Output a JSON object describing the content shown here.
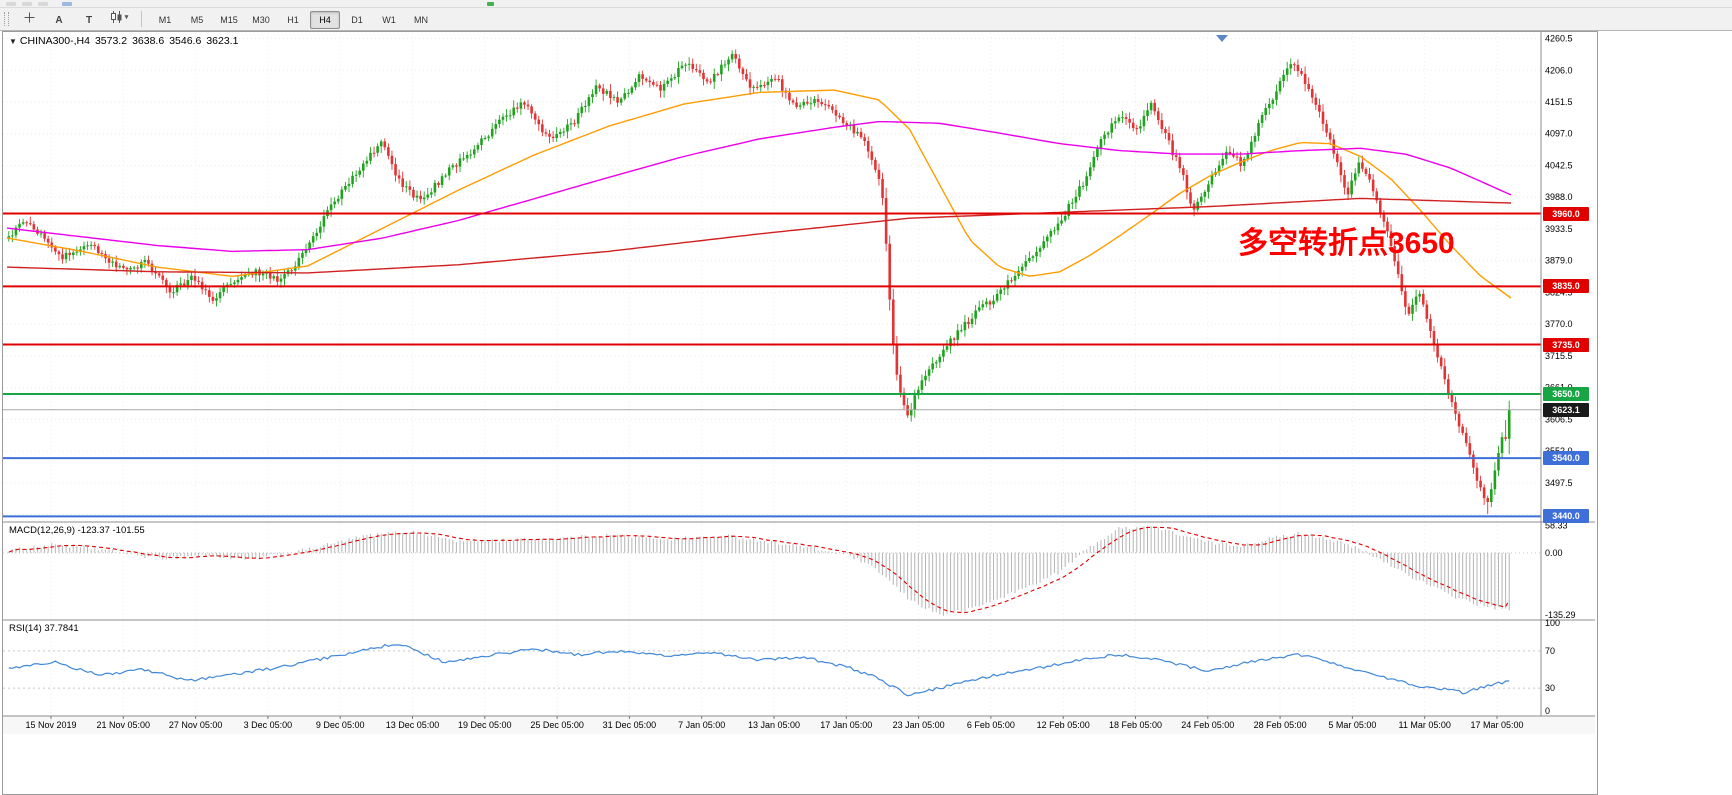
{
  "toolbar": {
    "tools": [
      {
        "name": "crosshair-tool",
        "icon": "crosshair",
        "label": ""
      },
      {
        "name": "text-label-tool",
        "icon": "",
        "label": "A"
      },
      {
        "name": "text-tool",
        "icon": "",
        "label": "T"
      },
      {
        "name": "chart-type-tool",
        "icon": "candles",
        "label": "",
        "dropdown": "▾"
      }
    ],
    "timeframes": [
      "M1",
      "M5",
      "M15",
      "M30",
      "H1",
      "H4",
      "D1",
      "W1",
      "MN"
    ],
    "active_timeframe": "H4"
  },
  "header": {
    "dropdown_icon": "▼",
    "symbol": "CHINA300-,H4",
    "open": "3573.2",
    "high": "3638.6",
    "low": "3546.6",
    "close": "3623.1"
  },
  "annotation": {
    "text": "多空转折点3650",
    "color": "#ff0000"
  },
  "indicators": {
    "macd_label": "MACD(12,26,9) -123.37 -101.55",
    "rsi_label": "RSI(14) 37.7841"
  },
  "colors": {
    "bull": "#1fa31f",
    "bear": "#e23434",
    "grid": "#ececec",
    "macd_hist": "#b4b4b4",
    "macd_signal": "#e00000",
    "rsi_line": "#3f87d8",
    "current_line": "#a8a8a8",
    "badge_current_bg": "#1a1a1a"
  },
  "chart_data": {
    "type": "candlestick",
    "symbol": "CHINA300-",
    "timeframe": "H4",
    "bars": 420,
    "last_candle": {
      "open": 3573.2,
      "high": 3638.6,
      "low": 3546.6,
      "close": 3623.1
    },
    "current_price": {
      "value": 3623.1,
      "label": "3623.1"
    },
    "main": {
      "y_ticks": [
        4260.5,
        4206.0,
        4151.5,
        4097.0,
        4042.5,
        3988.0,
        3933.5,
        3879.0,
        3824.5,
        3770.0,
        3715.5,
        3661.0,
        3606.5,
        3552.0,
        3497.5,
        3443.0
      ],
      "x_labels": [
        "15 Nov 2019",
        "21 Nov 05:00",
        "27 Nov 05:00",
        "3 Dec 05:00",
        "9 Dec 05:00",
        "13 Dec 05:00",
        "19 Dec 05:00",
        "25 Dec 05:00",
        "31 Dec 05:00",
        "7 Jan 05:00",
        "13 Jan 05:00",
        "17 Jan 05:00",
        "23 Jan 05:00",
        "6 Feb 05:00",
        "12 Feb 05:00",
        "18 Feb 05:00",
        "24 Feb 05:00",
        "28 Feb 05:00",
        "5 Mar 05:00",
        "11 Mar 05:00",
        "17 Mar 05:00"
      ],
      "levels": [
        {
          "price": 3960.0,
          "label": "3960.0",
          "color": "#e00000"
        },
        {
          "price": 3835.0,
          "label": "3835.0",
          "color": "#e00000"
        },
        {
          "price": 3735.0,
          "label": "3735.0",
          "color": "#e00000"
        },
        {
          "price": 3650.0,
          "label": "3650.0",
          "color": "#18a645"
        },
        {
          "price": 3540.0,
          "label": "3540.0",
          "color": "#3e6fd8"
        },
        {
          "price": 3440.0,
          "label": "3440.0",
          "color": "#3e6fd8"
        }
      ],
      "price_path": [
        [
          0.0,
          3922
        ],
        [
          0.012,
          3948
        ],
        [
          0.035,
          3885
        ],
        [
          0.055,
          3908
        ],
        [
          0.075,
          3862
        ],
        [
          0.092,
          3876
        ],
        [
          0.108,
          3826
        ],
        [
          0.122,
          3852
        ],
        [
          0.135,
          3812
        ],
        [
          0.15,
          3846
        ],
        [
          0.165,
          3862
        ],
        [
          0.18,
          3842
        ],
        [
          0.195,
          3886
        ],
        [
          0.21,
          3952
        ],
        [
          0.228,
          4020
        ],
        [
          0.248,
          4082
        ],
        [
          0.262,
          4008
        ],
        [
          0.275,
          3978
        ],
        [
          0.292,
          4032
        ],
        [
          0.31,
          4068
        ],
        [
          0.328,
          4122
        ],
        [
          0.345,
          4152
        ],
        [
          0.36,
          4086
        ],
        [
          0.375,
          4112
        ],
        [
          0.392,
          4178
        ],
        [
          0.408,
          4152
        ],
        [
          0.42,
          4196
        ],
        [
          0.435,
          4172
        ],
        [
          0.45,
          4218
        ],
        [
          0.468,
          4188
        ],
        [
          0.482,
          4232
        ],
        [
          0.495,
          4170
        ],
        [
          0.51,
          4196
        ],
        [
          0.525,
          4142
        ],
        [
          0.54,
          4158
        ],
        [
          0.555,
          4120
        ],
        [
          0.57,
          4088
        ],
        [
          0.582,
          4002
        ],
        [
          0.59,
          3712
        ],
        [
          0.598,
          3608
        ],
        [
          0.608,
          3668
        ],
        [
          0.618,
          3705
        ],
        [
          0.63,
          3748
        ],
        [
          0.642,
          3782
        ],
        [
          0.655,
          3812
        ],
        [
          0.668,
          3846
        ],
        [
          0.68,
          3882
        ],
        [
          0.692,
          3920
        ],
        [
          0.705,
          3965
        ],
        [
          0.718,
          4022
        ],
        [
          0.728,
          4085
        ],
        [
          0.74,
          4128
        ],
        [
          0.752,
          4102
        ],
        [
          0.762,
          4148
        ],
        [
          0.772,
          4088
        ],
        [
          0.782,
          4028
        ],
        [
          0.79,
          3962
        ],
        [
          0.8,
          4015
        ],
        [
          0.812,
          4068
        ],
        [
          0.822,
          4042
        ],
        [
          0.832,
          4108
        ],
        [
          0.845,
          4172
        ],
        [
          0.855,
          4225
        ],
        [
          0.865,
          4182
        ],
        [
          0.874,
          4128
        ],
        [
          0.884,
          4062
        ],
        [
          0.892,
          3988
        ],
        [
          0.9,
          4052
        ],
        [
          0.91,
          3996
        ],
        [
          0.922,
          3902
        ],
        [
          0.932,
          3788
        ],
        [
          0.94,
          3822
        ],
        [
          0.948,
          3752
        ],
        [
          0.958,
          3662
        ],
        [
          0.968,
          3588
        ],
        [
          0.978,
          3505
        ],
        [
          0.986,
          3462
        ],
        [
          0.993,
          3552
        ],
        [
          1.0,
          3623.1
        ]
      ],
      "ma_lines": [
        {
          "name": "ma-fast",
          "color": "#ff9d00",
          "path": [
            [
              0.0,
              3918
            ],
            [
              0.05,
              3895
            ],
            [
              0.1,
              3868
            ],
            [
              0.15,
              3852
            ],
            [
              0.2,
              3870
            ],
            [
              0.25,
              3935
            ],
            [
              0.3,
              4000
            ],
            [
              0.35,
              4060
            ],
            [
              0.4,
              4110
            ],
            [
              0.45,
              4148
            ],
            [
              0.5,
              4168
            ],
            [
              0.55,
              4172
            ],
            [
              0.58,
              4155
            ],
            [
              0.6,
              4105
            ],
            [
              0.62,
              4010
            ],
            [
              0.64,
              3915
            ],
            [
              0.66,
              3868
            ],
            [
              0.68,
              3852
            ],
            [
              0.7,
              3860
            ],
            [
              0.72,
              3888
            ],
            [
              0.74,
              3922
            ],
            [
              0.76,
              3958
            ],
            [
              0.78,
              3995
            ],
            [
              0.8,
              4025
            ],
            [
              0.82,
              4048
            ],
            [
              0.84,
              4068
            ],
            [
              0.86,
              4082
            ],
            [
              0.88,
              4080
            ],
            [
              0.9,
              4058
            ],
            [
              0.92,
              4020
            ],
            [
              0.94,
              3965
            ],
            [
              0.96,
              3905
            ],
            [
              0.98,
              3852
            ],
            [
              1.0,
              3815
            ]
          ]
        },
        {
          "name": "ma-mid",
          "color": "#ec00ec",
          "path": [
            [
              0.0,
              3935
            ],
            [
              0.05,
              3920
            ],
            [
              0.1,
              3905
            ],
            [
              0.15,
              3895
            ],
            [
              0.2,
              3898
            ],
            [
              0.25,
              3918
            ],
            [
              0.3,
              3948
            ],
            [
              0.35,
              3985
            ],
            [
              0.4,
              4022
            ],
            [
              0.45,
              4058
            ],
            [
              0.5,
              4088
            ],
            [
              0.55,
              4108
            ],
            [
              0.58,
              4118
            ],
            [
              0.62,
              4115
            ],
            [
              0.66,
              4098
            ],
            [
              0.7,
              4080
            ],
            [
              0.74,
              4068
            ],
            [
              0.78,
              4062
            ],
            [
              0.82,
              4062
            ],
            [
              0.86,
              4068
            ],
            [
              0.9,
              4072
            ],
            [
              0.93,
              4062
            ],
            [
              0.96,
              4038
            ],
            [
              1.0,
              3992
            ]
          ]
        },
        {
          "name": "ma-slow",
          "color": "#d02020",
          "path": [
            [
              0.0,
              3868
            ],
            [
              0.1,
              3860
            ],
            [
              0.2,
              3858
            ],
            [
              0.3,
              3872
            ],
            [
              0.4,
              3895
            ],
            [
              0.5,
              3925
            ],
            [
              0.6,
              3952
            ],
            [
              0.7,
              3962
            ],
            [
              0.8,
              3972
            ],
            [
              0.9,
              3986
            ],
            [
              1.0,
              3978
            ]
          ]
        }
      ]
    },
    "macd": {
      "params": "12,26,9",
      "value": -123.37,
      "signal": -101.55,
      "axis_values": [
        58.33,
        0,
        -135.29
      ],
      "scale_max": 64,
      "scale_min": -142,
      "path": [
        [
          0.0,
          5
        ],
        [
          0.03,
          18
        ],
        [
          0.06,
          8
        ],
        [
          0.1,
          -12
        ],
        [
          0.13,
          -5
        ],
        [
          0.16,
          -15
        ],
        [
          0.2,
          8
        ],
        [
          0.24,
          38
        ],
        [
          0.27,
          45
        ],
        [
          0.3,
          25
        ],
        [
          0.33,
          28
        ],
        [
          0.36,
          30
        ],
        [
          0.4,
          38
        ],
        [
          0.44,
          30
        ],
        [
          0.48,
          36
        ],
        [
          0.52,
          18
        ],
        [
          0.56,
          -5
        ],
        [
          0.58,
          -40
        ],
        [
          0.6,
          -100
        ],
        [
          0.62,
          -132
        ],
        [
          0.64,
          -122
        ],
        [
          0.66,
          -98
        ],
        [
          0.68,
          -72
        ],
        [
          0.7,
          -42
        ],
        [
          0.72,
          12
        ],
        [
          0.74,
          52
        ],
        [
          0.76,
          58
        ],
        [
          0.78,
          40
        ],
        [
          0.8,
          22
        ],
        [
          0.82,
          15
        ],
        [
          0.84,
          30
        ],
        [
          0.86,
          42
        ],
        [
          0.88,
          30
        ],
        [
          0.9,
          8
        ],
        [
          0.92,
          -25
        ],
        [
          0.94,
          -60
        ],
        [
          0.96,
          -90
        ],
        [
          0.98,
          -112
        ],
        [
          1.0,
          -123.37
        ]
      ]
    },
    "rsi": {
      "period": 14,
      "value": 37.7841,
      "axis_values": [
        100,
        70,
        30,
        0
      ],
      "overbought": 70,
      "oversold": 30,
      "path": [
        [
          0.0,
          52
        ],
        [
          0.03,
          58
        ],
        [
          0.06,
          44
        ],
        [
          0.09,
          50
        ],
        [
          0.12,
          38
        ],
        [
          0.15,
          45
        ],
        [
          0.18,
          52
        ],
        [
          0.21,
          62
        ],
        [
          0.24,
          72
        ],
        [
          0.26,
          78
        ],
        [
          0.29,
          58
        ],
        [
          0.32,
          65
        ],
        [
          0.35,
          72
        ],
        [
          0.38,
          66
        ],
        [
          0.41,
          70
        ],
        [
          0.44,
          64
        ],
        [
          0.47,
          68
        ],
        [
          0.5,
          60
        ],
        [
          0.53,
          63
        ],
        [
          0.56,
          52
        ],
        [
          0.58,
          40
        ],
        [
          0.6,
          22
        ],
        [
          0.62,
          30
        ],
        [
          0.64,
          38
        ],
        [
          0.66,
          45
        ],
        [
          0.68,
          50
        ],
        [
          0.7,
          56
        ],
        [
          0.72,
          62
        ],
        [
          0.74,
          66
        ],
        [
          0.76,
          62
        ],
        [
          0.78,
          55
        ],
        [
          0.8,
          48
        ],
        [
          0.82,
          56
        ],
        [
          0.84,
          62
        ],
        [
          0.86,
          66
        ],
        [
          0.88,
          58
        ],
        [
          0.9,
          48
        ],
        [
          0.92,
          40
        ],
        [
          0.94,
          32
        ],
        [
          0.96,
          28
        ],
        [
          0.97,
          25
        ],
        [
          0.98,
          30
        ],
        [
          0.99,
          34
        ],
        [
          1.0,
          37.78
        ]
      ]
    }
  }
}
